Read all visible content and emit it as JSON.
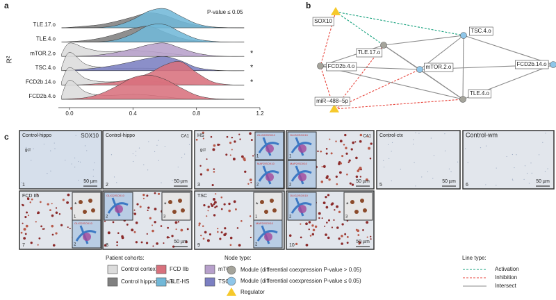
{
  "panel_labels": [
    "a",
    "b",
    "c"
  ],
  "chart_data": {
    "type": "ridgeline",
    "ylabel": "R²",
    "annotation": "P-value ≤ 0.05",
    "categories": [
      "TLE.17.o",
      "TLE.4.o",
      "mTOR.2.o",
      "TSC.4.o",
      "FCD2b.14.o",
      "FCD2b.4.o"
    ],
    "x": [
      -0.05,
      0,
      0.1,
      0.2,
      0.3,
      0.4,
      0.5,
      0.6,
      0.7,
      0.8,
      0.9,
      1.0,
      1.1
    ],
    "xlim": [
      -0.07,
      1.2
    ],
    "xticks": [
      {
        "value": 0,
        "label": "0.0"
      },
      0.4,
      0.8,
      1.2
    ],
    "markers": [
      {
        "label": "*",
        "category": 2
      },
      {
        "label": "*",
        "category": 3
      },
      {
        "label": "*",
        "category": 4
      }
    ],
    "series": [
      {
        "name": "Control cortex",
        "color": "#dcdcdc",
        "values": [
          null,
          null,
          [
            0.3,
            1.6,
            1.0,
            0.6,
            0.6,
            0.7,
            0.6,
            0.4,
            0.2,
            0.05,
            0,
            0,
            0
          ],
          [
            0.4,
            2.2,
            0.8,
            0.4,
            0.3,
            0.3,
            0.3,
            0.2,
            0.1,
            0.03,
            0,
            0,
            0
          ],
          [
            0.4,
            2.1,
            0.8,
            0.4,
            0.4,
            0.5,
            0.5,
            0.3,
            0.1,
            0.03,
            0,
            0,
            0
          ],
          [
            0.4,
            2.3,
            0.9,
            0.5,
            0.5,
            0.6,
            0.5,
            0.3,
            0.1,
            0.03,
            0,
            0,
            0
          ]
        ]
      },
      {
        "name": "Control hippocampus",
        "color": "#808080",
        "values": [
          [
            0,
            0.05,
            0.2,
            0.4,
            0.8,
            1.3,
            1.8,
            1.5,
            0.8,
            0.3,
            0.1,
            0.02,
            0
          ],
          [
            0,
            0.05,
            0.2,
            0.5,
            1.0,
            1.6,
            1.9,
            1.2,
            0.5,
            0.15,
            0.05,
            0,
            0
          ],
          null,
          null,
          null,
          null
        ]
      },
      {
        "name": "FCD IIb",
        "color": "#d8717d",
        "values": [
          null,
          null,
          null,
          null,
          [
            0,
            0,
            0.05,
            0.2,
            0.4,
            0.8,
            1.4,
            2.4,
            2.8,
            1.5,
            0.4,
            0.05,
            0
          ],
          [
            0,
            0.05,
            0.2,
            0.7,
            1.6,
            2.6,
            2.9,
            2.4,
            1.4,
            0.5,
            0.1,
            0.02,
            0
          ]
        ]
      },
      {
        "name": "TLE-HS",
        "color": "#72b8d8",
        "values": [
          [
            0,
            0,
            0,
            0.05,
            0.3,
            1.0,
            2.0,
            2.3,
            1.4,
            0.5,
            0.1,
            0.02,
            0
          ],
          [
            0,
            0,
            0,
            0.05,
            0.3,
            1.0,
            2.0,
            2.1,
            1.2,
            0.4,
            0.1,
            0,
            0
          ],
          null,
          null,
          null,
          null
        ]
      },
      {
        "name": "mTOR",
        "color": "#b7a0cb",
        "values": [
          null,
          null,
          [
            0,
            0,
            0.05,
            0.2,
            0.5,
            0.9,
            1.4,
            1.6,
            1.0,
            0.4,
            0.1,
            0,
            0
          ],
          null,
          null,
          null
        ]
      },
      {
        "name": "TSC",
        "color": "#7b7fc2",
        "values": [
          null,
          null,
          null,
          [
            0,
            0.05,
            0.2,
            0.4,
            0.7,
            1.1,
            1.5,
            1.7,
            1.2,
            0.4,
            0.1,
            0,
            0
          ],
          null,
          null
        ]
      }
    ]
  },
  "network": {
    "nodes": [
      {
        "label": "SOX10",
        "type": 2
      },
      {
        "label": "TLE.17.o",
        "type": 0
      },
      {
        "label": "FCD2b.4.o",
        "type": 0
      },
      {
        "label": "TSC.4.o",
        "type": 1
      },
      {
        "label": "mTOR.2.o",
        "type": 1
      },
      {
        "label": "FCD2b.14.o",
        "type": 1
      },
      {
        "label": "TLE.4.o",
        "type": 0
      },
      {
        "label": "miR−488−5p",
        "type": 2
      }
    ],
    "edges": [
      {
        "source": 0,
        "target": 3,
        "type": 0
      },
      {
        "source": 0,
        "target": 1,
        "type": 0
      },
      {
        "source": 0,
        "target": 2,
        "type": 1
      },
      {
        "source": 7,
        "target": 1,
        "type": 1
      },
      {
        "source": 7,
        "target": 4,
        "type": 1
      },
      {
        "source": 7,
        "target": 6,
        "type": 1
      },
      {
        "source": 7,
        "target": 2,
        "type": 1
      },
      {
        "source": 2,
        "target": 1,
        "type": 2
      },
      {
        "source": 2,
        "target": 4,
        "type": 2
      },
      {
        "source": 2,
        "target": 6,
        "type": 2
      },
      {
        "source": 1,
        "target": 3,
        "type": 2
      },
      {
        "source": 1,
        "target": 4,
        "type": 2
      },
      {
        "source": 1,
        "target": 6,
        "type": 2
      },
      {
        "source": 3,
        "target": 4,
        "type": 2
      },
      {
        "source": 3,
        "target": 5,
        "type": 2
      },
      {
        "source": 3,
        "target": 6,
        "type": 2
      },
      {
        "source": 4,
        "target": 5,
        "type": 2
      },
      {
        "source": 4,
        "target": 6,
        "type": 2
      },
      {
        "source": 6,
        "target": 5,
        "type": 2
      }
    ],
    "node_types": [
      {
        "label": "Module (differential coexpression P-value > 0.05)",
        "color": "#a5a49b"
      },
      {
        "label": "Module (differential coexpression P-value ≤ 0.05)",
        "color": "#8fc6e9"
      },
      {
        "label": "Regulator",
        "color": "#f6c92b"
      }
    ],
    "edge_types": [
      {
        "label": "Activation",
        "color": "#15a07c"
      },
      {
        "label": "Inhibition",
        "color": "#e8453c"
      },
      {
        "label": "Intersect",
        "color": "#8a8a8a"
      }
    ]
  },
  "micrographs": [
    {
      "number": "1",
      "tissue": "Control-hippo",
      "stain": "SOX10",
      "region": "gcl",
      "scale": "50 µm",
      "insets": []
    },
    {
      "number": "2",
      "tissue": "Control-hippo",
      "stain": "CA1",
      "scale": "50 µm",
      "insets": []
    },
    {
      "number": "3",
      "tissue": "HS",
      "region": "gcl",
      "scale": "50 µm",
      "insets": [
        {
          "label": "1",
          "stain": "OLIG2/SOX10"
        },
        {
          "label": "2",
          "stain": "MAP2/SOX10"
        }
      ]
    },
    {
      "number": "4",
      "stain": "CA1",
      "scale": "50 µm",
      "insets": [
        {
          "label": "1",
          "stain": "OLIG2/SOX10"
        },
        {
          "label": "2",
          "stain": "MAP2/SOX10"
        }
      ]
    },
    {
      "number": "5",
      "tissue": "Control-ctx",
      "scale": "50 µm",
      "insets": []
    },
    {
      "number": "6",
      "tissue": "Control-wm",
      "scale": "50 µm",
      "insets": []
    },
    {
      "number": "7",
      "tissue": "FCD IIb",
      "scale": "50 µm",
      "insets": [
        {
          "label": "1",
          "stain": "*"
        },
        {
          "label": "2",
          "stain": "OLIG2/SOX10"
        }
      ]
    },
    {
      "number": "8",
      "scale": "50 µm",
      "insets": [
        {
          "label": "2",
          "stain": "OLIG2/SOX10"
        },
        {
          "label": "3",
          "stain": "*"
        }
      ]
    },
    {
      "number": "9",
      "tissue": "TSC",
      "scale": "50 µm",
      "insets": [
        {
          "label": "1",
          "stain": "*"
        },
        {
          "label": "2",
          "stain": "MAP2/SOX10"
        }
      ]
    },
    {
      "number": "10",
      "scale": "50 µm",
      "insets": [
        {
          "label": "2",
          "stain": "OLIG2/SOX10"
        },
        {
          "label": "3",
          "stain": "*"
        }
      ]
    }
  ],
  "legend": {
    "cohorts_title": "Patient cohorts:",
    "node_title": "Node type:",
    "line_title": "Line type:"
  }
}
